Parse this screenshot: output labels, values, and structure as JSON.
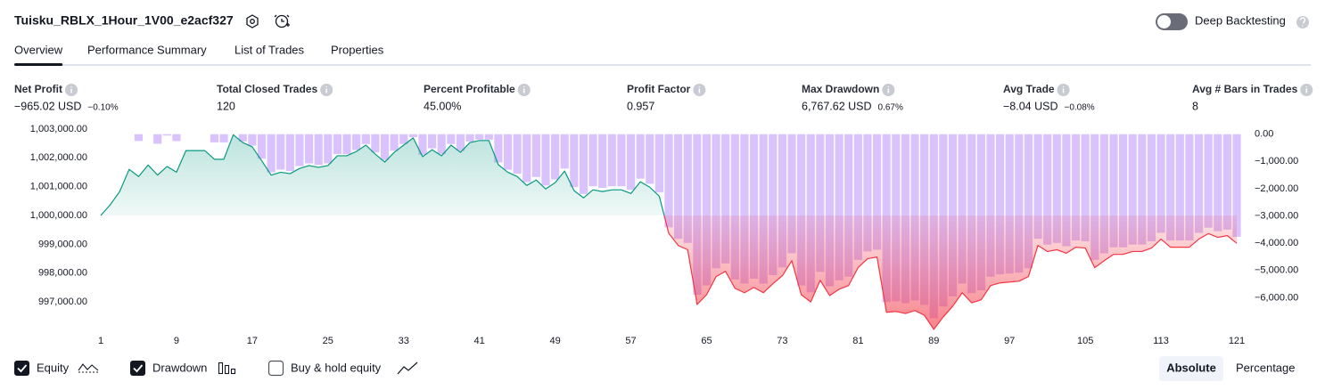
{
  "header": {
    "title": "Tuisku_RBLX_1Hour_1V00_e2acf327",
    "deep_backtesting": "Deep Backtesting"
  },
  "tabs": [
    "Overview",
    "Performance Summary",
    "List of Trades",
    "Properties"
  ],
  "metrics": [
    {
      "label": "Net Profit",
      "value": "−965.02 USD",
      "extra": "−0.10%",
      "color": "#f23645"
    },
    {
      "label": "Total Closed Trades",
      "value": "120",
      "color": "#131722"
    },
    {
      "label": "Percent Profitable",
      "value": "45.00%",
      "color": "#089981"
    },
    {
      "label": "Profit Factor",
      "value": "0.957",
      "color": "#f23645"
    },
    {
      "label": "Max Drawdown",
      "value": "6,767.62 USD",
      "extra": "0.67%",
      "color": "#f23645"
    },
    {
      "label": "Avg Trade",
      "value": "−8.04 USD",
      "extra": "−0.08%",
      "color": "#f23645"
    },
    {
      "label": "Avg # Bars in Trades",
      "value": "8",
      "color": "#131722"
    }
  ],
  "legend": [
    {
      "label": "Equity",
      "checked": true
    },
    {
      "label": "Drawdown",
      "checked": true
    },
    {
      "label": "Buy & hold equity",
      "checked": false
    }
  ],
  "modes": [
    "Absolute",
    "Percentage"
  ],
  "chart_data": {
    "type": "line",
    "x": [
      1,
      2,
      3,
      4,
      5,
      6,
      7,
      8,
      9,
      10,
      11,
      12,
      13,
      14,
      15,
      16,
      17,
      18,
      19,
      20,
      21,
      22,
      23,
      24,
      25,
      26,
      27,
      28,
      29,
      30,
      31,
      32,
      33,
      34,
      35,
      36,
      37,
      38,
      39,
      40,
      41,
      42,
      43,
      44,
      45,
      46,
      47,
      48,
      49,
      50,
      51,
      52,
      53,
      54,
      55,
      56,
      57,
      58,
      59,
      60,
      61,
      62,
      63,
      64,
      65,
      66,
      67,
      68,
      69,
      70,
      71,
      72,
      73,
      74,
      75,
      76,
      77,
      78,
      79,
      80,
      81,
      82,
      83,
      84,
      85,
      86,
      87,
      88,
      89,
      90,
      91,
      92,
      93,
      94,
      95,
      96,
      97,
      98,
      99,
      100,
      101,
      102,
      103,
      104,
      105,
      106,
      107,
      108,
      109,
      110,
      111,
      112,
      113,
      114,
      115,
      116,
      117,
      118,
      119,
      120,
      121
    ],
    "xlim": [
      1,
      121
    ],
    "xticks": [
      1,
      9,
      17,
      25,
      33,
      41,
      49,
      57,
      65,
      73,
      81,
      89,
      97,
      105,
      113,
      121
    ],
    "ylim": [
      996200,
      1003150
    ],
    "yticks": [
      {
        "value": 997000,
        "label": "997,000.00"
      },
      {
        "value": 998000,
        "label": "998,000.00"
      },
      {
        "value": 999000,
        "label": "999,000.00"
      },
      {
        "value": 1000000,
        "label": "1,000,000.00"
      },
      {
        "value": 1001000,
        "label": "1,001,000.00"
      },
      {
        "value": 1002000,
        "label": "1,002,000.00"
      },
      {
        "value": 1003000,
        "label": "1,003,000.00"
      }
    ],
    "y2lim": [
      -7000,
      350
    ],
    "y2ticks": [
      {
        "value": 0,
        "label": "0.00"
      },
      {
        "value": -1000,
        "label": "−1,000.00"
      },
      {
        "value": -2000,
        "label": "−2,000.00"
      },
      {
        "value": -3000,
        "label": "−3,000.00"
      },
      {
        "value": -4000,
        "label": "−4,000.00"
      },
      {
        "value": -5000,
        "label": "−5,000.00"
      },
      {
        "value": -6000,
        "label": "−6,000.00"
      }
    ],
    "grid": false,
    "series": [
      {
        "name": "Drawdown",
        "type": "bar",
        "axis": "y2",
        "color": "#d4b8fb",
        "values": [
          0,
          0,
          0,
          0,
          -250,
          0,
          -350,
          -50,
          -250,
          0,
          0,
          0,
          -300,
          -300,
          0,
          -270,
          -420,
          -900,
          -1400,
          -1300,
          -1350,
          -1170,
          -1070,
          -1130,
          -1070,
          -730,
          -730,
          -580,
          -360,
          -670,
          -950,
          -610,
          -360,
          -110,
          -760,
          -520,
          -730,
          -360,
          -610,
          -270,
          -200,
          -200,
          -1040,
          -1300,
          -1450,
          -1760,
          -1570,
          -1880,
          -1660,
          -1260,
          -1940,
          -2190,
          -1910,
          -1970,
          -1910,
          -1910,
          -2040,
          -1630,
          -1820,
          -2130,
          -3420,
          -3840,
          -3990,
          -5890,
          -5550,
          -4920,
          -4740,
          -5330,
          -5480,
          -5300,
          -5480,
          -5170,
          -4890,
          -4370,
          -5550,
          -5800,
          -5050,
          -5580,
          -5360,
          -5230,
          -4610,
          -4300,
          -4240,
          -6160,
          -6130,
          -6200,
          -6100,
          -6260,
          -6750,
          -6320,
          -5950,
          -5480,
          -5830,
          -5730,
          -5230,
          -5140,
          -5110,
          -5080,
          -4920,
          -3840,
          -4050,
          -3990,
          -4110,
          -3900,
          -3930,
          -4610,
          -4370,
          -4150,
          -4150,
          -4050,
          -4050,
          -3930,
          -3620,
          -3900,
          -3900,
          -3900,
          -3620,
          -3430,
          -3560,
          -3500,
          -3765
        ]
      },
      {
        "name": "Equity",
        "type": "line",
        "axis": "y",
        "color": "#089981",
        "color_below": "#f23645",
        "values": [
          1000000,
          1000370,
          1000830,
          1001600,
          1001350,
          1001750,
          1001400,
          1001700,
          1001500,
          1002250,
          1002250,
          1002250,
          1001950,
          1001950,
          1002800,
          1002530,
          1002380,
          1001900,
          1001400,
          1001500,
          1001450,
          1001630,
          1001730,
          1001670,
          1001730,
          1002070,
          1002070,
          1002220,
          1002440,
          1002130,
          1001850,
          1002190,
          1002440,
          1002690,
          1002040,
          1002280,
          1002070,
          1002440,
          1002190,
          1002530,
          1002600,
          1002600,
          1001760,
          1001500,
          1001350,
          1001040,
          1001230,
          1000920,
          1001140,
          1001540,
          1000860,
          1000610,
          1000890,
          1000830,
          1000890,
          1000890,
          1000760,
          1001170,
          1000980,
          1000670,
          999380,
          998960,
          998810,
          996910,
          997250,
          997880,
          998060,
          997470,
          997320,
          997500,
          997320,
          997630,
          997910,
          998430,
          997250,
          997000,
          997750,
          997220,
          997440,
          997570,
          998190,
          998500,
          998560,
          996640,
          996670,
          996600,
          996700,
          996540,
          996050,
          996480,
          996850,
          997320,
          996970,
          997070,
          997570,
          997660,
          997690,
          997720,
          997880,
          998960,
          998750,
          998810,
          998690,
          998900,
          998870,
          998190,
          998430,
          998650,
          998650,
          998750,
          998750,
          998870,
          999180,
          998900,
          998900,
          998900,
          999180,
          999370,
          999240,
          999300,
          999035
        ]
      }
    ]
  }
}
